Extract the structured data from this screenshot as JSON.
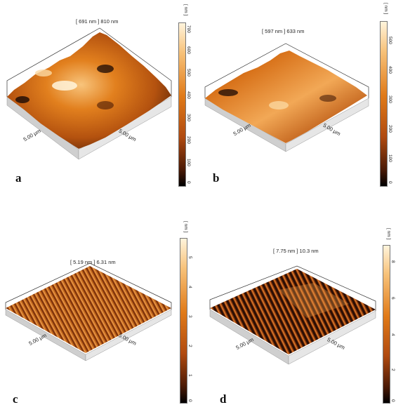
{
  "palette": {
    "afm_dark": "#1a0a05",
    "afm_mid": "#b04a10",
    "afm_orange": "#e07a18",
    "afm_light": "#f7c27a",
    "afm_highlight": "#fff4dc"
  },
  "panels": [
    {
      "letter": "a",
      "header": "[ 691 nm ] 810 nm",
      "x_label": "5.00 μm",
      "y_label": "5.00 μm",
      "unit": "[ nm ]",
      "scale_ticks": [
        "700",
        "600",
        "500",
        "400",
        "300",
        "200",
        "100",
        "0"
      ]
    },
    {
      "letter": "b",
      "header": "[ 597 nm ] 633 nm",
      "x_label": "5.00 μm",
      "y_label": "5.00 μm",
      "unit": "[ nm ]",
      "scale_ticks": [
        "500",
        "400",
        "300",
        "200",
        "100",
        "0"
      ]
    },
    {
      "letter": "c",
      "header": "[ 5.19 nm ] 6.31 nm",
      "x_label": "5.00 μm",
      "y_label": "5.00 μm",
      "unit": "[ nm ]",
      "scale_ticks": [
        "5",
        "4",
        "3",
        "2",
        "1",
        "0"
      ]
    },
    {
      "letter": "d",
      "header": "[ 7.75 nm ] 10.3 nm",
      "x_label": "5.00 μm",
      "y_label": "5.00 μm",
      "unit": "[ nm ]",
      "scale_ticks": [
        "8",
        "6",
        "4",
        "2",
        "0"
      ]
    }
  ]
}
